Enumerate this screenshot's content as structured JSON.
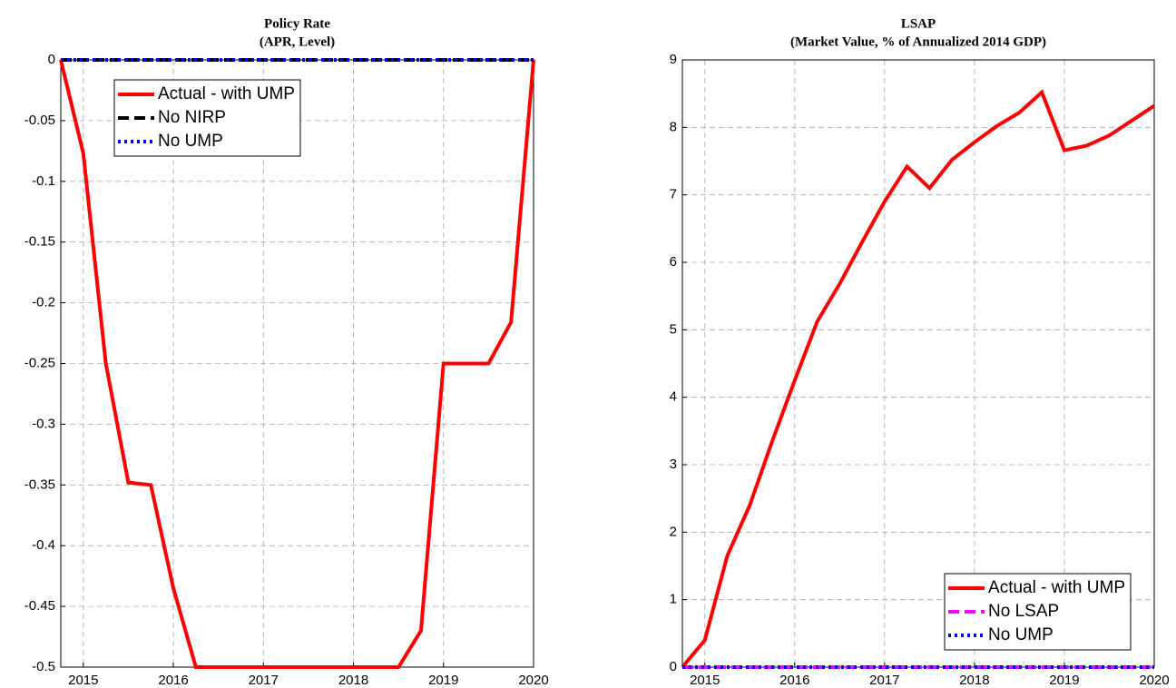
{
  "chart_data": [
    {
      "type": "line",
      "title": "Policy Rate",
      "subtitle": "(APR, Level)",
      "x": [
        2014.75,
        2015,
        2015.25,
        2015.5,
        2015.75,
        2016,
        2016.25,
        2016.5,
        2016.75,
        2017,
        2017.25,
        2017.5,
        2017.75,
        2018,
        2018.25,
        2018.5,
        2018.75,
        2019,
        2019.25,
        2019.5,
        2019.75,
        2020
      ],
      "series": [
        {
          "name": "Actual - with UMP",
          "color": "#ff0000",
          "linestyle": "solid",
          "values": [
            0,
            -0.077,
            -0.25,
            -0.348,
            -0.35,
            -0.435,
            -0.5,
            -0.5,
            -0.5,
            -0.5,
            -0.5,
            -0.5,
            -0.5,
            -0.5,
            -0.5,
            -0.5,
            -0.47,
            -0.25,
            -0.25,
            -0.25,
            -0.216,
            0
          ]
        },
        {
          "name": "No NIRP",
          "color": "#000000",
          "linestyle": "dashed",
          "values": [
            0,
            0,
            0,
            0,
            0,
            0,
            0,
            0,
            0,
            0,
            0,
            0,
            0,
            0,
            0,
            0,
            0,
            0,
            0,
            0,
            0,
            0
          ]
        },
        {
          "name": "No UMP",
          "color": "#0000ff",
          "linestyle": "dotted",
          "values": [
            0,
            0,
            0,
            0,
            0,
            0,
            0,
            0,
            0,
            0,
            0,
            0,
            0,
            0,
            0,
            0,
            0,
            0,
            0,
            0,
            0,
            0
          ]
        }
      ],
      "xlim": [
        2014.75,
        2020
      ],
      "xticks": [
        2015,
        2016,
        2017,
        2018,
        2019,
        2020
      ],
      "ylim": [
        -0.5,
        0
      ],
      "yticks": [
        -0.5,
        -0.45,
        -0.4,
        -0.35,
        -0.3,
        -0.25,
        -0.2,
        -0.15,
        -0.1,
        -0.05,
        0
      ],
      "grid": true,
      "legend": "upper left"
    },
    {
      "type": "line",
      "title": "LSAP",
      "subtitle": "(Market Value, % of Annualized 2014 GDP)",
      "x": [
        2014.75,
        2015,
        2015.25,
        2015.5,
        2015.75,
        2016,
        2016.25,
        2016.5,
        2016.75,
        2017,
        2017.25,
        2017.5,
        2017.75,
        2018,
        2018.25,
        2018.5,
        2018.75,
        2019,
        2019.25,
        2019.5,
        2019.75,
        2020
      ],
      "series": [
        {
          "name": "Actual - with UMP",
          "color": "#ff0000",
          "linestyle": "solid",
          "values": [
            0,
            0.4,
            1.65,
            2.4,
            3.35,
            4.25,
            5.12,
            5.68,
            6.3,
            6.9,
            7.42,
            7.1,
            7.52,
            7.78,
            8.02,
            8.22,
            8.52,
            7.66,
            7.73,
            7.88,
            8.1,
            8.32
          ]
        },
        {
          "name": "No LSAP",
          "color": "#ff00ff",
          "linestyle": "dashed",
          "values": [
            0,
            0,
            0,
            0,
            0,
            0,
            0,
            0,
            0,
            0,
            0,
            0,
            0,
            0,
            0,
            0,
            0,
            0,
            0,
            0,
            0,
            0
          ]
        },
        {
          "name": "No UMP",
          "color": "#0000ff",
          "linestyle": "dotted",
          "values": [
            0,
            0,
            0,
            0,
            0,
            0,
            0,
            0,
            0,
            0,
            0,
            0,
            0,
            0,
            0,
            0,
            0,
            0,
            0,
            0,
            0,
            0
          ]
        }
      ],
      "xlim": [
        2014.75,
        2020
      ],
      "xticks": [
        2015,
        2016,
        2017,
        2018,
        2019,
        2020
      ],
      "ylim": [
        0,
        9
      ],
      "yticks": [
        0,
        1,
        2,
        3,
        4,
        5,
        6,
        7,
        8,
        9
      ],
      "grid": true,
      "legend": "lower right"
    }
  ]
}
